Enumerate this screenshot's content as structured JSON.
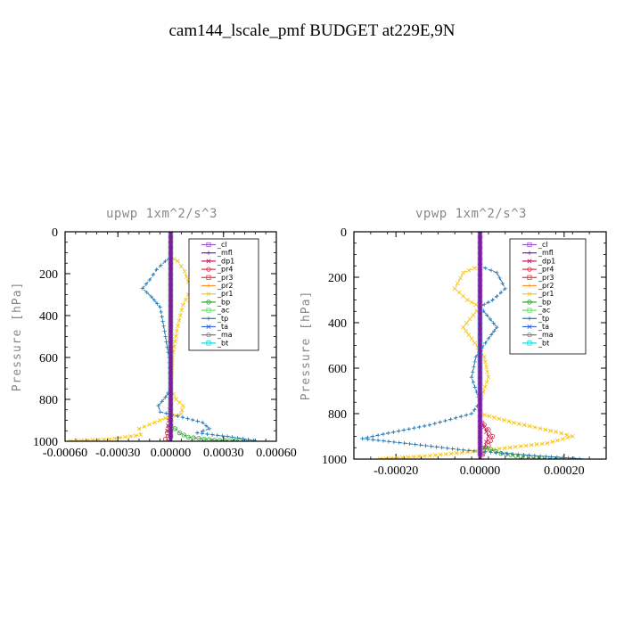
{
  "figure_title": "cam144_lscale_pmf  BUDGET at229E,9N",
  "chart_data": [
    {
      "type": "line",
      "title": "upwp   1xm^2/s^3",
      "ylabel": "Pressure [hPa]",
      "xlabel": "",
      "xlim": [
        -0.0006,
        0.0006
      ],
      "ylim": [
        1000,
        0
      ],
      "xticks": [
        "-0.00060",
        "-0.00030",
        "0.00000",
        "0.00030",
        "0.00060"
      ],
      "xtick_values": [
        -0.0006,
        -0.0003,
        0,
        0.0003,
        0.0006
      ],
      "yticks": [
        "0",
        "200",
        "400",
        "600",
        "800",
        "1000"
      ],
      "ytick_values": [
        0,
        200,
        400,
        600,
        800,
        1000
      ],
      "legend_position": "top-right",
      "legend": [
        "_cl",
        "_mfl",
        "_dp1",
        "_pr4",
        "_pr3",
        "_pr2",
        "_pr1",
        "_bp",
        "_ac",
        "_tp",
        "_ta",
        "_ma",
        "_bt"
      ],
      "series": [
        {
          "name": "_cl",
          "color": "#9a55cc",
          "values": [
            [
              0,
              0
            ],
            [
              0,
              500
            ],
            [
              0,
              1000
            ]
          ]
        },
        {
          "name": "_mfl",
          "color": "#7a1f9a",
          "values": [
            [
              0,
              0
            ],
            [
              0,
              500
            ],
            [
              0,
              1000
            ]
          ]
        },
        {
          "name": "_dp1",
          "color": "#c0145a",
          "values": [
            [
              0,
              0
            ],
            [
              0,
              800
            ],
            [
              -1e-05,
              900
            ],
            [
              -2e-05,
              950
            ],
            [
              0,
              1000
            ]
          ]
        },
        {
          "name": "_pr4",
          "color": "#e0304a",
          "values": [
            [
              0,
              0
            ],
            [
              0,
              900
            ],
            [
              -2e-05,
              960
            ],
            [
              -3e-05,
              990
            ],
            [
              0,
              1000
            ]
          ]
        },
        {
          "name": "_pr3",
          "color": "#ff3030",
          "values": [
            [
              0,
              0
            ],
            [
              0,
              1000
            ]
          ]
        },
        {
          "name": "_pr2",
          "color": "#ff9030",
          "values": [
            [
              0,
              0
            ],
            [
              0,
              1000
            ]
          ]
        },
        {
          "name": "_pr1",
          "color": "#f5c518",
          "values": [
            [
              0,
              0
            ],
            [
              0,
              120
            ],
            [
              4e-05,
              140
            ],
            [
              8e-05,
              190
            ],
            [
              0.0001,
              240
            ],
            [
              0.00012,
              270
            ],
            [
              0.0001,
              300
            ],
            [
              7e-05,
              350
            ],
            [
              4e-05,
              450
            ],
            [
              1e-05,
              600
            ],
            [
              0,
              750
            ],
            [
              3e-05,
              800
            ],
            [
              7e-05,
              830
            ],
            [
              6e-05,
              870
            ],
            [
              -3e-05,
              890
            ],
            [
              -0.00012,
              920
            ],
            [
              -0.00018,
              940
            ],
            [
              -0.00017,
              970
            ],
            [
              -0.00035,
              990
            ],
            [
              -0.0006,
              1000
            ]
          ]
        },
        {
          "name": "_bp",
          "color": "#2ca02c",
          "values": [
            [
              0,
              0
            ],
            [
              0,
              920
            ],
            [
              5e-05,
              960
            ],
            [
              0.0001,
              980
            ],
            [
              0.00025,
              995
            ],
            [
              0.00045,
              1000
            ]
          ]
        },
        {
          "name": "_ac",
          "color": "#66dd66",
          "values": [
            [
              0,
              0
            ],
            [
              0,
              1000
            ]
          ]
        },
        {
          "name": "_tp",
          "color": "#1f77b4",
          "values": [
            [
              0,
              0
            ],
            [
              0,
              120
            ],
            [
              -3e-05,
              140
            ],
            [
              -8e-05,
              180
            ],
            [
              -0.00012,
              230
            ],
            [
              -0.00016,
              270
            ],
            [
              -0.00011,
              310
            ],
            [
              -6e-05,
              360
            ],
            [
              -4e-05,
              450
            ],
            [
              -1e-05,
              600
            ],
            [
              0,
              750
            ],
            [
              -3e-05,
              790
            ],
            [
              -7e-05,
              830
            ],
            [
              -6e-05,
              860
            ],
            [
              4e-05,
              880
            ],
            [
              0.00018,
              910
            ],
            [
              0.00022,
              940
            ],
            [
              0.00015,
              960
            ],
            [
              0.00035,
              980
            ],
            [
              0.0005,
              1000
            ]
          ]
        },
        {
          "name": "_ta",
          "color": "#3366dd",
          "values": [
            [
              0,
              0
            ],
            [
              0,
              1000
            ]
          ]
        },
        {
          "name": "_ma",
          "color": "#777777",
          "values": [
            [
              0,
              0
            ],
            [
              0,
              1000
            ]
          ]
        },
        {
          "name": "_bt",
          "color": "#00dddd",
          "values": [
            [
              0,
              0
            ],
            [
              0,
              1000
            ]
          ]
        }
      ]
    },
    {
      "type": "line",
      "title": "vpwp   1xm^2/s^3",
      "ylabel": "Pressure [hPa]",
      "xlabel": "",
      "xlim": [
        -0.0003,
        0.0003
      ],
      "ylim": [
        1000,
        0
      ],
      "xticks": [
        "-0.00020",
        "0.00000",
        "0.00020"
      ],
      "xtick_values": [
        -0.0002,
        0,
        0.0002
      ],
      "yticks": [
        "0",
        "200",
        "400",
        "600",
        "800",
        "1000"
      ],
      "ytick_values": [
        0,
        200,
        400,
        600,
        800,
        1000
      ],
      "legend_position": "top-right",
      "legend": [
        "_cl",
        "_mfl",
        "_dp1",
        "_pr4",
        "_pr3",
        "_pr2",
        "_pr1",
        "_bp",
        "_ac",
        "_tp",
        "_ta",
        "_ma",
        "_bt"
      ],
      "series": [
        {
          "name": "_cl",
          "color": "#9a55cc",
          "values": [
            [
              0,
              0
            ],
            [
              0,
              500
            ],
            [
              0,
              1000
            ]
          ]
        },
        {
          "name": "_mfl",
          "color": "#7a1f9a",
          "values": [
            [
              0,
              0
            ],
            [
              0,
              500
            ],
            [
              0,
              1000
            ]
          ]
        },
        {
          "name": "_dp1",
          "color": "#c0145a",
          "values": [
            [
              0,
              0
            ],
            [
              0,
              820
            ],
            [
              1e-05,
              860
            ],
            [
              2e-05,
              900
            ],
            [
              1e-05,
              950
            ],
            [
              0,
              1000
            ]
          ]
        },
        {
          "name": "_pr4",
          "color": "#e0304a",
          "values": [
            [
              0,
              0
            ],
            [
              0,
              830
            ],
            [
              2e-05,
              870
            ],
            [
              3e-05,
              900
            ],
            [
              2e-05,
              940
            ],
            [
              0,
              1000
            ]
          ]
        },
        {
          "name": "_pr3",
          "color": "#ff3030",
          "values": [
            [
              0,
              0
            ],
            [
              0,
              1000
            ]
          ]
        },
        {
          "name": "_pr2",
          "color": "#ff9030",
          "values": [
            [
              0,
              0
            ],
            [
              0,
              1000
            ]
          ]
        },
        {
          "name": "_pr1",
          "color": "#f5c518",
          "values": [
            [
              0,
              0
            ],
            [
              0,
              150
            ],
            [
              -4e-05,
              180
            ],
            [
              -6e-05,
              250
            ],
            [
              -3e-05,
              300
            ],
            [
              0,
              330
            ],
            [
              -4e-05,
              420
            ],
            [
              -2e-05,
              470
            ],
            [
              1e-05,
              550
            ],
            [
              2e-05,
              640
            ],
            [
              0,
              750
            ],
            [
              0,
              800
            ],
            [
              8e-05,
              840
            ],
            [
              0.00018,
              880
            ],
            [
              0.00022,
              900
            ],
            [
              0.00016,
              930
            ],
            [
              2e-05,
              960
            ],
            [
              -0.00012,
              985
            ],
            [
              -0.00025,
              1000
            ]
          ]
        },
        {
          "name": "_bp",
          "color": "#2ca02c",
          "values": [
            [
              0,
              0
            ],
            [
              0,
              940
            ],
            [
              5e-05,
              975
            ],
            [
              0.00012,
              995
            ],
            [
              0.0002,
              1000
            ]
          ]
        },
        {
          "name": "_ac",
          "color": "#66dd66",
          "values": [
            [
              0,
              0
            ],
            [
              0,
              1000
            ]
          ]
        },
        {
          "name": "_tp",
          "color": "#1f77b4",
          "values": [
            [
              0,
              0
            ],
            [
              0,
              150
            ],
            [
              4e-05,
              180
            ],
            [
              6e-05,
              250
            ],
            [
              3e-05,
              300
            ],
            [
              0,
              330
            ],
            [
              4e-05,
              420
            ],
            [
              2e-05,
              470
            ],
            [
              -1e-05,
              550
            ],
            [
              -2e-05,
              640
            ],
            [
              0,
              750
            ],
            [
              -2e-05,
              800
            ],
            [
              -0.00012,
              850
            ],
            [
              -0.00023,
              890
            ],
            [
              -0.00028,
              910
            ],
            [
              -0.00018,
              930
            ],
            [
              -4e-05,
              960
            ],
            [
              0.00013,
              985
            ],
            [
              0.00025,
              1000
            ]
          ]
        },
        {
          "name": "_ta",
          "color": "#3366dd",
          "values": [
            [
              0,
              0
            ],
            [
              0,
              1000
            ]
          ]
        },
        {
          "name": "_ma",
          "color": "#777777",
          "values": [
            [
              0,
              0
            ],
            [
              0,
              1000
            ]
          ]
        },
        {
          "name": "_bt",
          "color": "#00dddd",
          "values": [
            [
              0,
              0
            ],
            [
              0,
              1000
            ]
          ]
        }
      ]
    }
  ]
}
